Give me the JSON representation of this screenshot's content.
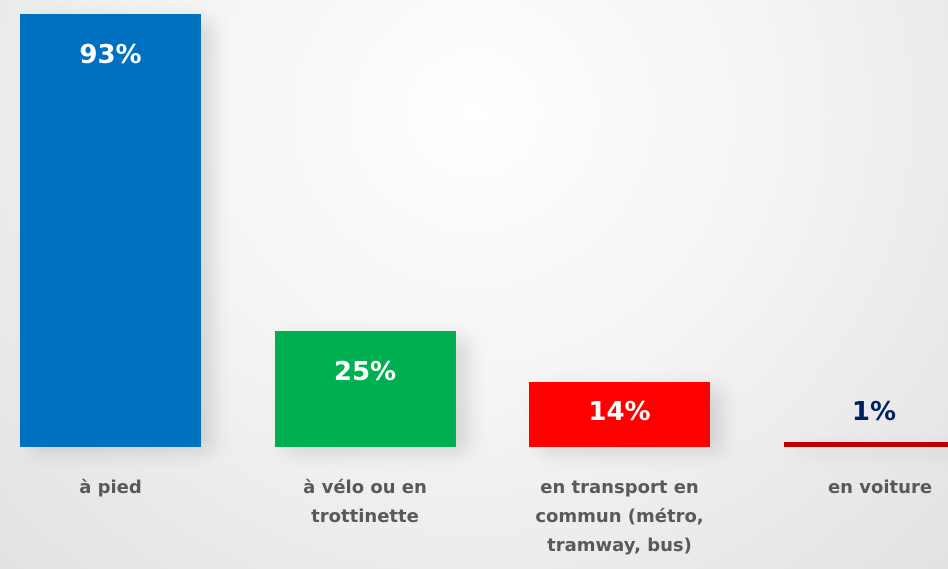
{
  "chart_data": {
    "type": "bar",
    "categories": [
      "à pied",
      "à vélo ou en trottinette",
      "en transport en commun (métro, tramway, bus)",
      "en voiture"
    ],
    "values": [
      93,
      25,
      14,
      1
    ],
    "value_labels": [
      "93%",
      "25%",
      "14%",
      "1%"
    ],
    "colors": [
      "#0070c0",
      "#00b050",
      "#ff0000",
      "#c00000"
    ],
    "value_label_colors": [
      "#ffffff",
      "#ffffff",
      "#ffffff",
      "#002060"
    ]
  }
}
